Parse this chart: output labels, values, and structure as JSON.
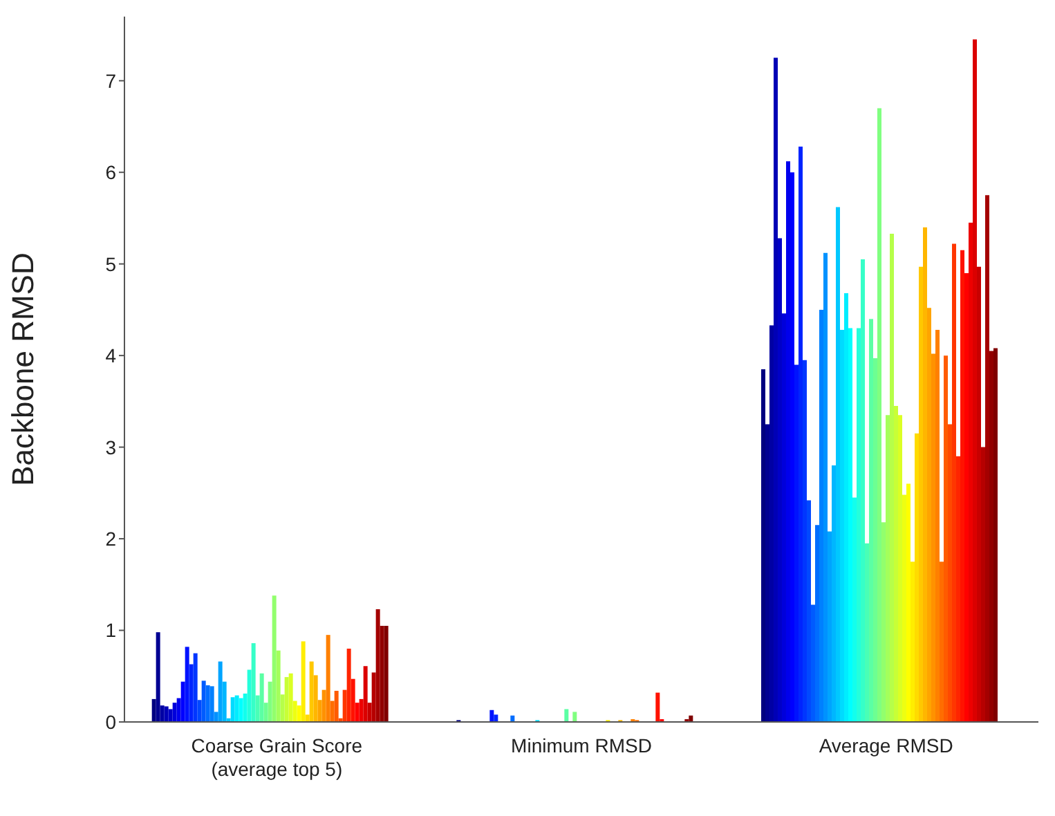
{
  "chart_data": {
    "type": "bar",
    "ylabel": "Backbone RMSD",
    "categories": [
      "Coarse Grain Score\n(average top 5)",
      "Minimum RMSD",
      "Average RMSD"
    ],
    "ylim": [
      0,
      7.7
    ],
    "yticks": [
      0,
      1,
      2,
      3,
      4,
      5,
      6,
      7
    ],
    "grid": false,
    "legend": false,
    "series": [
      {
        "color": "#000080",
        "values": [
          0.25,
          0.02,
          3.85
        ]
      },
      {
        "color": "#000092",
        "values": [
          0.98,
          0,
          3.25
        ]
      },
      {
        "color": "#0000a4",
        "values": [
          0.18,
          0,
          4.33
        ]
      },
      {
        "color": "#0000b6",
        "values": [
          0.17,
          0,
          7.25
        ]
      },
      {
        "color": "#0000c8",
        "values": [
          0.14,
          0,
          5.28
        ]
      },
      {
        "color": "#0000db",
        "values": [
          0.21,
          0,
          4.46
        ]
      },
      {
        "color": "#0000ed",
        "values": [
          0.26,
          0,
          6.12
        ]
      },
      {
        "color": "#0000ff",
        "values": [
          0.44,
          0,
          6.0
        ]
      },
      {
        "color": "#0012ff",
        "values": [
          0.82,
          0.13,
          3.9
        ]
      },
      {
        "color": "#0024ff",
        "values": [
          0.63,
          0.08,
          6.28
        ]
      },
      {
        "color": "#0036ff",
        "values": [
          0.75,
          0,
          3.95
        ]
      },
      {
        "color": "#0049ff",
        "values": [
          0.24,
          0,
          2.42
        ]
      },
      {
        "color": "#005bff",
        "values": [
          0.45,
          0,
          1.28
        ]
      },
      {
        "color": "#006dff",
        "values": [
          0.4,
          0.07,
          2.15
        ]
      },
      {
        "color": "#0080ff",
        "values": [
          0.39,
          0,
          4.5
        ]
      },
      {
        "color": "#0092ff",
        "values": [
          0.11,
          0,
          5.12
        ]
      },
      {
        "color": "#00a4ff",
        "values": [
          0.66,
          0,
          2.08
        ]
      },
      {
        "color": "#00b6ff",
        "values": [
          0.44,
          0,
          2.8
        ]
      },
      {
        "color": "#00c8ff",
        "values": [
          0.04,
          0,
          5.62
        ]
      },
      {
        "color": "#00dbff",
        "values": [
          0.27,
          0.02,
          4.28
        ]
      },
      {
        "color": "#00edff",
        "values": [
          0.29,
          0,
          4.68
        ]
      },
      {
        "color": "#00ffff",
        "values": [
          0.26,
          0,
          4.3
        ]
      },
      {
        "color": "#12ffed",
        "values": [
          0.31,
          0,
          2.45
        ]
      },
      {
        "color": "#24ffdb",
        "values": [
          0.57,
          0,
          4.3
        ]
      },
      {
        "color": "#36ffc8",
        "values": [
          0.86,
          0,
          5.05
        ]
      },
      {
        "color": "#49ffb6",
        "values": [
          0.29,
          0,
          1.95
        ]
      },
      {
        "color": "#5bffa4",
        "values": [
          0.53,
          0.14,
          4.4
        ]
      },
      {
        "color": "#6dff92",
        "values": [
          0.21,
          0,
          3.97
        ]
      },
      {
        "color": "#80ff80",
        "values": [
          0.44,
          0.11,
          6.7
        ]
      },
      {
        "color": "#92ff6d",
        "values": [
          1.38,
          0,
          2.18
        ]
      },
      {
        "color": "#a4ff5b",
        "values": [
          0.78,
          0,
          3.35
        ]
      },
      {
        "color": "#b6ff49",
        "values": [
          0.3,
          0,
          5.33
        ]
      },
      {
        "color": "#c8ff36",
        "values": [
          0.49,
          0,
          3.45
        ]
      },
      {
        "color": "#dbff24",
        "values": [
          0.53,
          0,
          3.35
        ]
      },
      {
        "color": "#edff12",
        "values": [
          0.23,
          0,
          2.48
        ]
      },
      {
        "color": "#ffff00",
        "values": [
          0.18,
          0,
          2.6
        ]
      },
      {
        "color": "#ffed00",
        "values": [
          0.88,
          0.02,
          1.75
        ]
      },
      {
        "color": "#ffdb00",
        "values": [
          0.08,
          0,
          3.15
        ]
      },
      {
        "color": "#ffc800",
        "values": [
          0.66,
          0,
          4.97
        ]
      },
      {
        "color": "#ffb600",
        "values": [
          0.51,
          0.02,
          5.4
        ]
      },
      {
        "color": "#ffa400",
        "values": [
          0.24,
          0,
          4.52
        ]
      },
      {
        "color": "#ff9200",
        "values": [
          0.35,
          0,
          4.02
        ]
      },
      {
        "color": "#ff8000",
        "values": [
          0.95,
          0.03,
          4.28
        ]
      },
      {
        "color": "#ff6d00",
        "values": [
          0.23,
          0.02,
          1.75
        ]
      },
      {
        "color": "#ff5b00",
        "values": [
          0.34,
          0,
          4.0
        ]
      },
      {
        "color": "#ff4900",
        "values": [
          0.04,
          0,
          3.25
        ]
      },
      {
        "color": "#ff3600",
        "values": [
          0.35,
          0,
          5.22
        ]
      },
      {
        "color": "#ff2400",
        "values": [
          0.8,
          0,
          2.9
        ]
      },
      {
        "color": "#ff1200",
        "values": [
          0.47,
          0.32,
          5.15
        ]
      },
      {
        "color": "#ff0000",
        "values": [
          0.21,
          0.03,
          4.9
        ]
      },
      {
        "color": "#ed0000",
        "values": [
          0.25,
          0,
          5.45
        ]
      },
      {
        "color": "#db0000",
        "values": [
          0.61,
          0,
          7.45
        ]
      },
      {
        "color": "#c80000",
        "values": [
          0.21,
          0,
          4.97
        ]
      },
      {
        "color": "#b60000",
        "values": [
          0.54,
          0,
          3.0
        ]
      },
      {
        "color": "#a40000",
        "values": [
          1.23,
          0,
          5.75
        ]
      },
      {
        "color": "#920000",
        "values": [
          1.05,
          0.03,
          4.05
        ]
      },
      {
        "color": "#800000",
        "values": [
          1.05,
          0.07,
          4.08
        ]
      }
    ]
  }
}
